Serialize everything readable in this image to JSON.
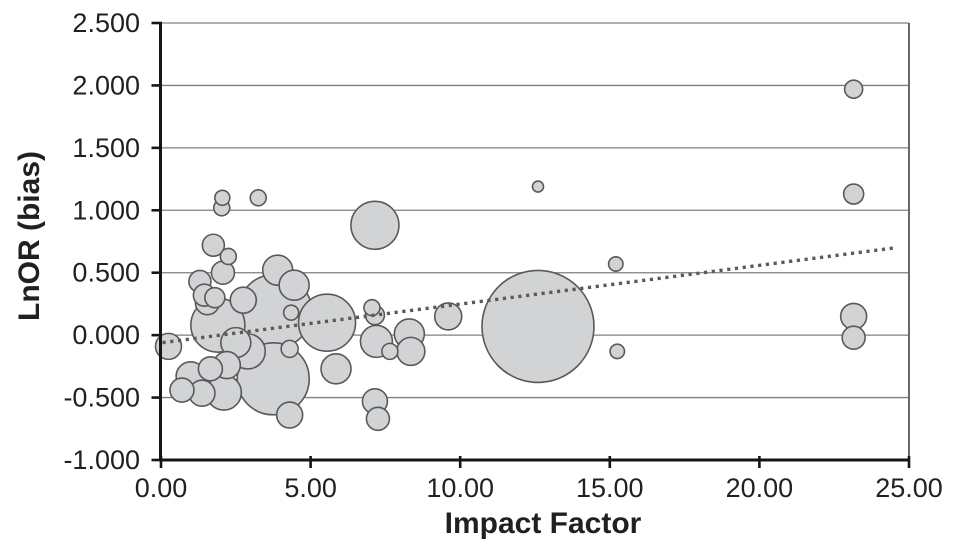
{
  "figure": {
    "y_axis_title": "LnOR (bias)",
    "x_axis_title": "Impact Factor"
  },
  "colors": {
    "background": "#ffffff",
    "bubble_fill": "#d2d3d4",
    "bubble_stroke": "#58595b",
    "gridline": "#7f7f7f",
    "plot_border_right": "#696969",
    "axis": "#151515",
    "trendline": "#5a5a5a",
    "text": "#231f20"
  },
  "chart_data": {
    "type": "scatter",
    "subtype": "bubble",
    "title": "",
    "xlabel": "Impact Factor",
    "ylabel": "LnOR (bias)",
    "xlim": [
      0,
      25
    ],
    "ylim": [
      -1.0,
      2.5
    ],
    "grid": "horizontal",
    "legend": "none",
    "x_ticks": [
      {
        "value": 0,
        "label": "0.00"
      },
      {
        "value": 5,
        "label": "5.00"
      },
      {
        "value": 10,
        "label": "10.00"
      },
      {
        "value": 15,
        "label": "15.00"
      },
      {
        "value": 20,
        "label": "20.00"
      },
      {
        "value": 25,
        "label": "25.00"
      }
    ],
    "y_ticks": [
      {
        "value": -1.0,
        "label": "-1.000"
      },
      {
        "value": -0.5,
        "label": "-0.500"
      },
      {
        "value": 0.0,
        "label": "0.000"
      },
      {
        "value": 0.5,
        "label": "0.500"
      },
      {
        "value": 1.0,
        "label": "1.000"
      },
      {
        "value": 1.5,
        "label": "1.500"
      },
      {
        "value": 2.0,
        "label": "2.000"
      },
      {
        "value": 2.5,
        "label": "2.500"
      }
    ],
    "trendline": {
      "style": "dotted",
      "x1": 0.05,
      "y1": -0.06,
      "x2": 24.55,
      "y2": 0.7
    },
    "points": [
      {
        "x": 0.25,
        "y": -0.09,
        "r": 13
      },
      {
        "x": 0.7,
        "y": -0.44,
        "r": 12
      },
      {
        "x": 0.99,
        "y": -0.33,
        "r": 14.5
      },
      {
        "x": 1.3,
        "y": 0.43,
        "r": 11
      },
      {
        "x": 1.37,
        "y": -0.465,
        "r": 13
      },
      {
        "x": 1.45,
        "y": 0.32,
        "r": 11
      },
      {
        "x": 1.55,
        "y": 0.26,
        "r": 12
      },
      {
        "x": 1.65,
        "y": -0.27,
        "r": 12
      },
      {
        "x": 1.75,
        "y": 0.72,
        "r": 11
      },
      {
        "x": 1.8,
        "y": 0.3,
        "r": 10
      },
      {
        "x": 1.9,
        "y": 0.08,
        "r": 27
      },
      {
        "x": 2.03,
        "y": 1.02,
        "r": 8
      },
      {
        "x": 2.05,
        "y": 1.1,
        "r": 7.5
      },
      {
        "x": 2.07,
        "y": 0.5,
        "r": 11.5
      },
      {
        "x": 2.1,
        "y": -0.46,
        "r": 17.5
      },
      {
        "x": 2.2,
        "y": -0.24,
        "r": 13.5
      },
      {
        "x": 2.25,
        "y": 0.63,
        "r": 8
      },
      {
        "x": 2.5,
        "y": -0.06,
        "r": 15
      },
      {
        "x": 2.75,
        "y": 0.28,
        "r": 13
      },
      {
        "x": 2.9,
        "y": -0.13,
        "r": 17.5
      },
      {
        "x": 3.25,
        "y": 1.1,
        "r": 8
      },
      {
        "x": 3.75,
        "y": -0.35,
        "r": 36
      },
      {
        "x": 3.8,
        "y": 0.19,
        "r": 37
      },
      {
        "x": 3.9,
        "y": 0.52,
        "r": 15
      },
      {
        "x": 4.3,
        "y": -0.11,
        "r": 8.5
      },
      {
        "x": 4.3,
        "y": -0.64,
        "r": 13
      },
      {
        "x": 4.35,
        "y": 0.18,
        "r": 7.5
      },
      {
        "x": 4.45,
        "y": 0.4,
        "r": 15
      },
      {
        "x": 5.55,
        "y": 0.1,
        "r": 28.5
      },
      {
        "x": 5.85,
        "y": -0.27,
        "r": 15
      },
      {
        "x": 7.05,
        "y": 0.22,
        "r": 8
      },
      {
        "x": 7.15,
        "y": 0.88,
        "r": 24
      },
      {
        "x": 7.15,
        "y": 0.16,
        "r": 9.5
      },
      {
        "x": 7.2,
        "y": -0.05,
        "r": 16
      },
      {
        "x": 7.15,
        "y": -0.53,
        "r": 12.5
      },
      {
        "x": 7.25,
        "y": -0.67,
        "r": 11.5
      },
      {
        "x": 7.65,
        "y": -0.13,
        "r": 8
      },
      {
        "x": 8.3,
        "y": 0.01,
        "r": 15
      },
      {
        "x": 8.35,
        "y": -0.13,
        "r": 14
      },
      {
        "x": 9.6,
        "y": 0.15,
        "r": 13.5
      },
      {
        "x": 12.6,
        "y": 1.19,
        "r": 5.5
      },
      {
        "x": 12.6,
        "y": 0.07,
        "r": 56
      },
      {
        "x": 15.2,
        "y": 0.57,
        "r": 7.2
      },
      {
        "x": 15.25,
        "y": -0.13,
        "r": 7.2
      },
      {
        "x": 23.15,
        "y": 1.97,
        "r": 9
      },
      {
        "x": 23.15,
        "y": 1.13,
        "r": 10
      },
      {
        "x": 23.15,
        "y": 0.15,
        "r": 13
      },
      {
        "x": 23.15,
        "y": -0.02,
        "r": 11.5
      }
    ]
  }
}
